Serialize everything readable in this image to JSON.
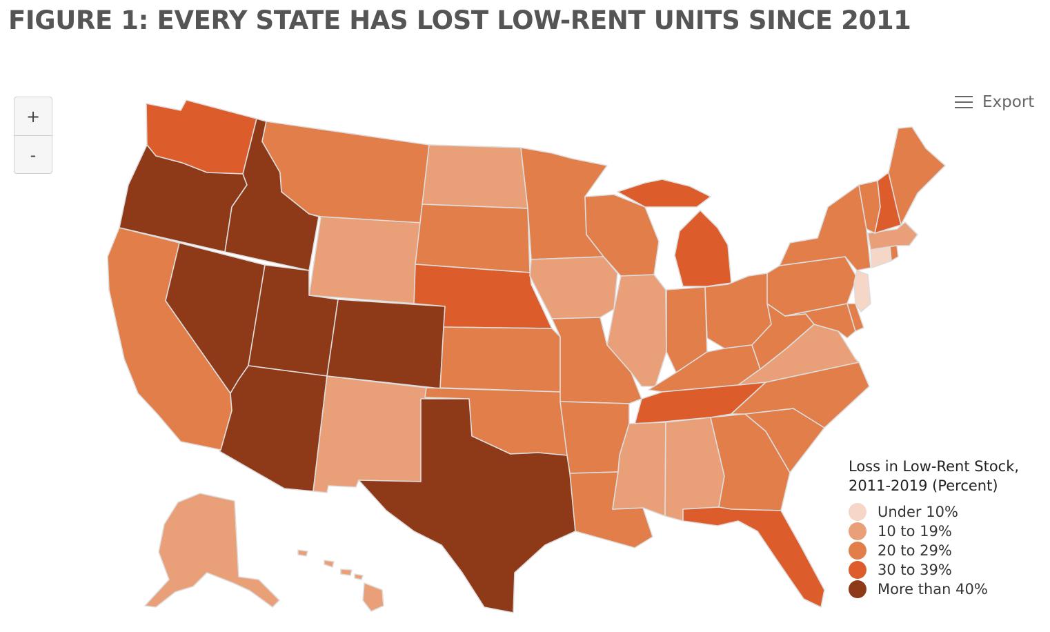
{
  "title": "FIGURE 1: EVERY STATE HAS LOST LOW-RENT UNITS SINCE 2011",
  "zoom": {
    "in_label": "+",
    "out_label": "-"
  },
  "export": {
    "label": "Export",
    "icon": "hamburger-menu-icon"
  },
  "legend": {
    "title_line1": "Loss in Low-Rent Stock,",
    "title_line2": "2011-2019 (Percent)",
    "items": [
      {
        "label": "Under 10%",
        "color": "#f6d6c6"
      },
      {
        "label": "10 to 19%",
        "color": "#e9a079"
      },
      {
        "label": "20 to 29%",
        "color": "#e17e4a"
      },
      {
        "label": "30 to 39%",
        "color": "#dc5d2b"
      },
      {
        "label": "More than 40%",
        "color": "#8e3a19"
      }
    ]
  },
  "states": {
    "WA": 3,
    "OR": 4,
    "ID": 4,
    "NV": 4,
    "UT": 4,
    "AZ": 4,
    "CO": 4,
    "TX": 4,
    "CA": 2,
    "MT": 2,
    "SD": 2,
    "MN": 2,
    "KS": 2,
    "OK": 2,
    "MO": 2,
    "AR": 2,
    "LA": 2,
    "WI": 2,
    "IN": 2,
    "OH": 2,
    "KY": 2,
    "WV": 2,
    "NC": 2,
    "SC": 2,
    "GA": 2,
    "PA": 2,
    "NY": 2,
    "VT": 2,
    "ME": 2,
    "MD": 2,
    "DE": 2,
    "RI": 2,
    "NE": 3,
    "MI": 3,
    "TN": 3,
    "FL": 3,
    "NH": 3,
    "ND": 1,
    "WY": 1,
    "NM": 1,
    "IA": 1,
    "IL": 1,
    "MS": 1,
    "AL": 1,
    "VA": 1,
    "MA": 1,
    "AK": 1,
    "HI": 1,
    "CT": 0,
    "NJ": 0
  }
}
